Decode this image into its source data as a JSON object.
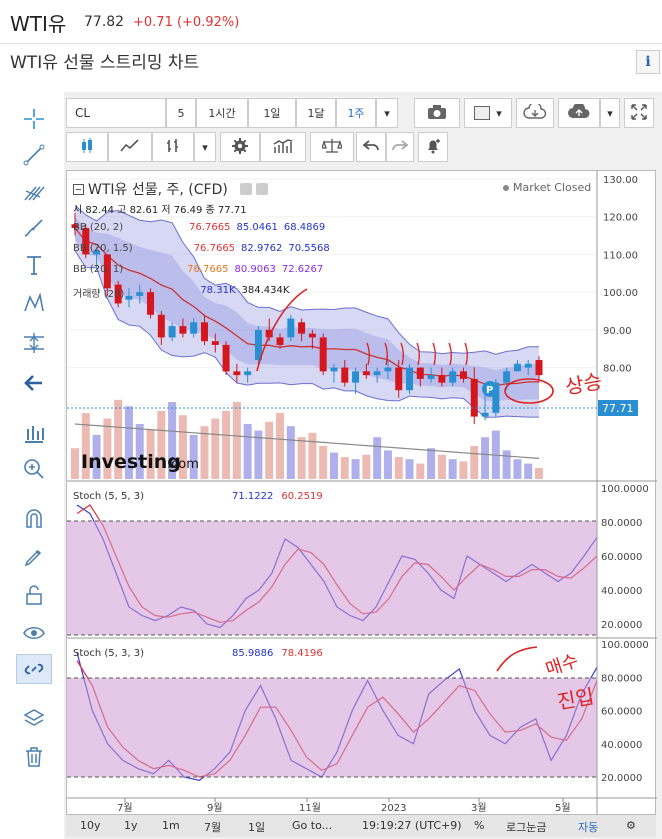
{
  "header": {
    "name": "WTI유",
    "price": "77.82",
    "change": "+0.71 (+0.92%)",
    "subtitle": "WTI유 선물 스트리밍 차트",
    "info": "i"
  },
  "toolbar": {
    "symbol": "CL",
    "interval_5": "5",
    "interval_1h": "1시간",
    "interval_1d": "1일",
    "interval_1m": "1달",
    "interval_1w": "1주"
  },
  "legend": {
    "title": "WTI유 선물, 주, (CFD)",
    "market_status": "Market Closed",
    "ohlc": "시 82.44  고 82.61  저 76.49  종 77.71",
    "bb1": {
      "label": "BB (20, 2)",
      "mid": "76.7665",
      "up": "85.0461",
      "low": "68.4869"
    },
    "bb2": {
      "label": "BB (20, 1.5)",
      "mid": "76.7665",
      "up": "82.9762",
      "low": "70.5568"
    },
    "bb3": {
      "label": "BB (20, 1)",
      "mid": "76.7665",
      "up": "80.9063",
      "low": "72.6267"
    },
    "vol": {
      "label": "거래량 (20)",
      "v1": "78.31K",
      "v2": "384.434K"
    },
    "last_price": "77.71",
    "logo": "Investing",
    "logo_suffix": ".com",
    "p_badge": "P"
  },
  "stoch1": {
    "label": "Stoch (5, 5, 3)",
    "k": "71.1222",
    "d": "60.2519"
  },
  "stoch2": {
    "label": "Stoch (5, 3, 3)",
    "k": "85.9886",
    "d": "78.4196"
  },
  "annotations": {
    "up": "상승",
    "buy": "매수",
    "entry": "진입"
  },
  "xlabels": [
    "7월",
    "9월",
    "11월",
    "2023",
    "3월",
    "5월"
  ],
  "ylabels_price": [
    "130.00",
    "120.00",
    "110.00",
    "100.00",
    "90.00",
    "80.00",
    "70.00"
  ],
  "ylabels_stoch": [
    "100.0000",
    "80.0000",
    "60.0000",
    "40.0000",
    "20.0000"
  ],
  "bottom": {
    "r10y": "10y",
    "r1y": "1y",
    "r1m": "1m",
    "r7": "7월",
    "r1d": "1일",
    "goto": "Go to...",
    "time": "19:19:27 (UTC+9)",
    "pct": "%",
    "log": "로그눈금",
    "auto": "자동"
  },
  "chart_data": [
    {
      "type": "candlestick",
      "title": "WTI유 선물, 주, (CFD)",
      "ylim": [
        60,
        132
      ],
      "last_value": 77.71,
      "candles": [
        [
          118,
          121,
          115,
          117
        ],
        [
          117,
          118,
          109,
          110
        ],
        [
          110,
          112,
          106,
          111
        ],
        [
          110,
          110,
          99,
          101
        ],
        [
          102,
          103,
          96,
          97
        ],
        [
          98,
          101,
          96,
          99
        ],
        [
          99,
          102,
          97,
          100
        ],
        [
          100,
          101,
          93,
          94
        ],
        [
          94,
          95,
          86,
          88
        ],
        [
          88,
          92,
          87,
          91
        ],
        [
          91,
          93,
          88,
          89
        ],
        [
          89,
          93,
          88,
          92
        ],
        [
          92,
          94,
          86,
          87
        ],
        [
          87,
          89,
          84,
          86
        ],
        [
          86,
          87,
          78,
          79
        ],
        [
          79,
          81,
          76,
          78
        ],
        [
          78,
          80,
          76,
          79
        ],
        [
          82,
          91,
          81,
          90
        ],
        [
          90,
          93,
          87,
          88
        ],
        [
          88,
          89,
          85,
          86
        ],
        [
          88,
          94,
          87,
          93
        ],
        [
          92,
          93,
          87,
          89
        ],
        [
          89,
          90,
          85,
          88
        ],
        [
          88,
          89,
          78,
          79
        ],
        [
          79,
          81,
          76,
          80
        ],
        [
          80,
          82,
          75,
          76
        ],
        [
          76,
          80,
          73,
          79
        ],
        [
          79,
          81,
          77,
          78
        ],
        [
          78,
          80,
          76,
          79
        ],
        [
          79,
          82,
          77,
          80
        ],
        [
          80,
          82,
          72,
          74
        ],
        [
          74,
          81,
          73,
          80
        ],
        [
          80,
          80,
          75,
          77
        ],
        [
          77,
          80,
          76,
          78
        ],
        [
          78,
          80,
          75,
          76
        ],
        [
          76,
          80,
          75,
          79
        ],
        [
          79,
          80,
          76,
          77
        ],
        [
          77,
          80,
          65,
          67
        ],
        [
          67,
          75,
          66,
          68
        ],
        [
          68,
          77,
          67,
          76
        ],
        [
          76,
          80,
          74,
          79
        ],
        [
          79,
          82,
          79,
          81
        ],
        [
          80,
          82,
          78,
          81
        ],
        [
          82,
          83,
          76,
          78
        ]
      ]
    },
    {
      "type": "line",
      "title": "Stoch (5, 5, 3)",
      "ylim": [
        10,
        100
      ],
      "series": [
        {
          "name": "%K",
          "values": [
            90,
            85,
            70,
            50,
            30,
            25,
            22,
            25,
            30,
            28,
            20,
            18,
            25,
            35,
            40,
            50,
            70,
            65,
            55,
            45,
            30,
            25,
            22,
            30,
            45,
            60,
            58,
            50,
            40,
            35,
            60,
            55,
            50,
            45,
            50,
            55,
            50,
            45,
            50,
            60,
            71
          ]
        },
        {
          "name": "%D",
          "values": [
            85,
            90,
            78,
            60,
            42,
            30,
            25,
            24,
            26,
            27,
            24,
            21,
            22,
            28,
            33,
            42,
            55,
            64,
            62,
            55,
            43,
            32,
            26,
            27,
            35,
            48,
            56,
            55,
            48,
            40,
            48,
            55,
            52,
            48,
            48,
            52,
            52,
            48,
            47,
            53,
            60
          ]
        }
      ]
    },
    {
      "type": "line",
      "title": "Stoch (5, 3, 3)",
      "ylim": [
        10,
        100
      ],
      "series": [
        {
          "name": "%K",
          "values": [
            95,
            60,
            40,
            30,
            25,
            22,
            30,
            20,
            18,
            25,
            35,
            60,
            75,
            55,
            30,
            25,
            20,
            35,
            60,
            78,
            60,
            45,
            40,
            70,
            78,
            85,
            60,
            45,
            40,
            50,
            55,
            30,
            45,
            70,
            86
          ]
        },
        {
          "name": "%D",
          "values": [
            90,
            75,
            50,
            38,
            30,
            25,
            27,
            24,
            20,
            22,
            30,
            45,
            62,
            62,
            48,
            32,
            24,
            28,
            45,
            62,
            68,
            58,
            47,
            55,
            65,
            75,
            72,
            58,
            47,
            48,
            52,
            44,
            42,
            55,
            78
          ]
        }
      ]
    }
  ]
}
